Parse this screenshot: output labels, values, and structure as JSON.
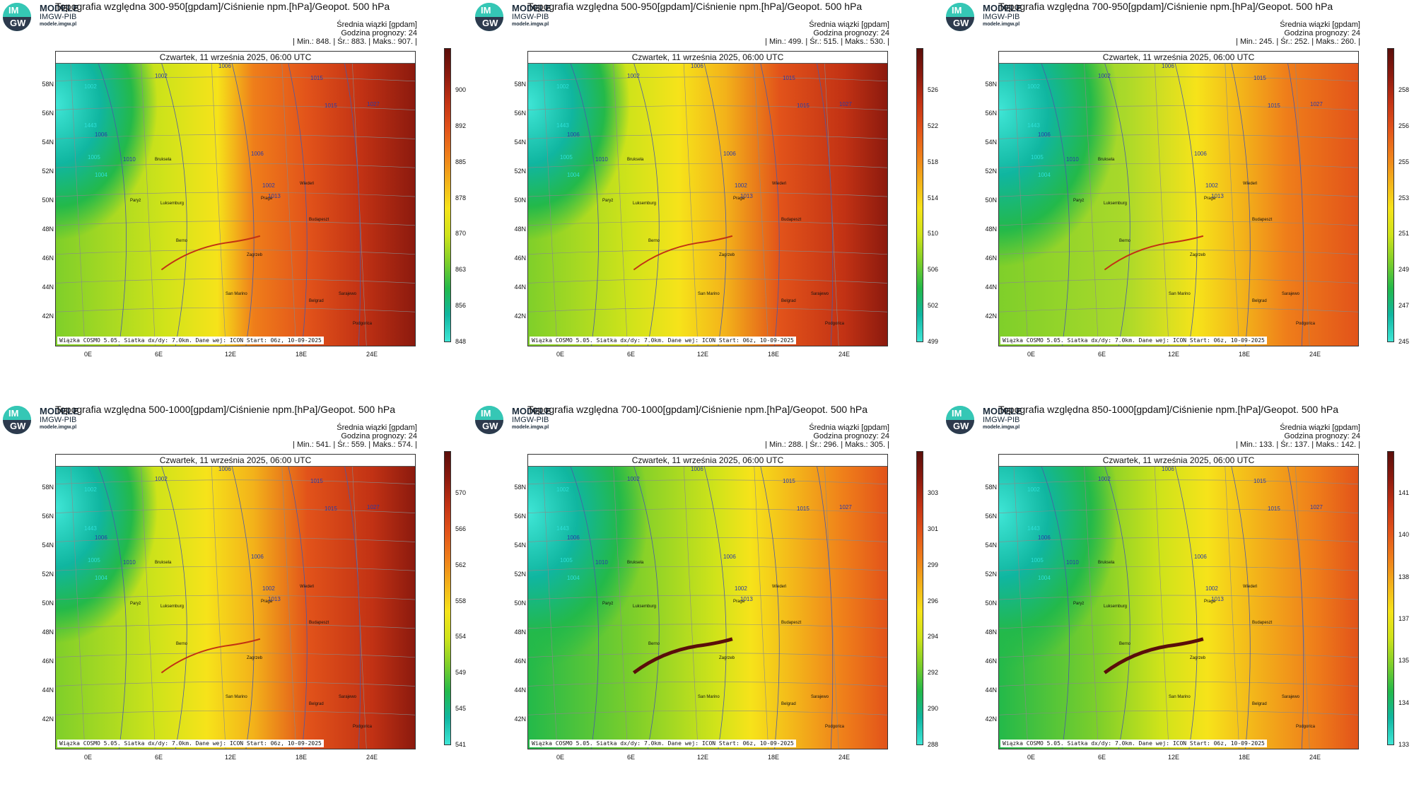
{
  "colors": {
    "scale": [
      "#3fe6d6",
      "#10b6a0",
      "#23b94a",
      "#7fcf2a",
      "#cfe31a",
      "#f6e31a",
      "#f3b21a",
      "#ef7e1a",
      "#e2531a",
      "#c23214",
      "#8c1a0e",
      "#5a0e0a"
    ]
  },
  "brand": {
    "name": "MODELE",
    "org": "IMGW-PIB",
    "site": "modele.imgw.pl",
    "logo_top": "IM",
    "logo_bottom": "GW"
  },
  "common": {
    "avg_label": "Średnia wiązki [gpdam]",
    "forecast_hour": "Godzina prognozy: 24",
    "date": "Czwartek, 11 września 2025, 06:00 UTC",
    "footer": "Wiązka COSMO 5.05. Siatka dx/dy: 7.0km. Dane wej: ICON Start: 06z, 10-09-2025",
    "lat_labels": [
      "58N",
      "56N",
      "54N",
      "52N",
      "50N",
      "48N",
      "46N",
      "44N",
      "42N"
    ],
    "lon_labels": [
      "0E",
      "6E",
      "12E",
      "18E",
      "24E"
    ],
    "cities": [
      "Bruksela",
      "Paryż",
      "Luksemburg",
      "Praga",
      "Wiedeń",
      "Budapeszt",
      "Berno",
      "Zagrzeb",
      "San Marino",
      "Belgrad",
      "Sarajewo",
      "Podgorica"
    ]
  },
  "panels": [
    {
      "title": "Topografia względna 300-950[gpdam]/Ciśnienie npm.[hPa]/Geopot. 500 hPa",
      "stats": "| Min.:   848. | Śr.:   883. | Maks.:   907. |",
      "cbar": [
        "900",
        "892",
        "885",
        "878",
        "870",
        "863",
        "856",
        "848"
      ]
    },
    {
      "title": "Topografia względna 500-950[gpdam]/Ciśnienie npm.[hPa]/Geopot. 500 hPa",
      "stats": "| Min.:   499. | Śr.:   515. | Maks.:   530. |",
      "cbar": [
        "526",
        "522",
        "518",
        "514",
        "510",
        "506",
        "502",
        "499"
      ]
    },
    {
      "title": "Topografia względna 700-950[gpdam]/Ciśnienie npm.[hPa]/Geopot. 500 hPa",
      "stats": "| Min.:   245. | Śr.:   252. | Maks.:   260. |",
      "cbar": [
        "258",
        "256",
        "255",
        "253",
        "251",
        "249",
        "247",
        "245"
      ]
    },
    {
      "title": "Topografia względna 500-1000[gpdam]/Ciśnienie npm.[hPa]/Geopot. 500 hPa",
      "stats": "| Min.:   541. | Śr.:   559. | Maks.:   574. |",
      "cbar": [
        "570",
        "566",
        "562",
        "558",
        "554",
        "549",
        "545",
        "541"
      ]
    },
    {
      "title": "Topografia względna 700-1000[gpdam]/Ciśnienie npm.[hPa]/Geopot. 500 hPa",
      "stats": "| Min.:   288. | Śr.:   296. | Maks.:   305. |",
      "cbar": [
        "303",
        "301",
        "299",
        "296",
        "294",
        "292",
        "290",
        "288"
      ]
    },
    {
      "title": "Topografia względna 850-1000[gpdam]/Ciśnienie npm.[hPa]/Geopot. 500 hPa",
      "stats": "| Min.:   133. | Śr.:   137. | Maks.:   142. |",
      "cbar": [
        "141",
        "140",
        "138",
        "137",
        "135",
        "134",
        "133"
      ]
    }
  ]
}
